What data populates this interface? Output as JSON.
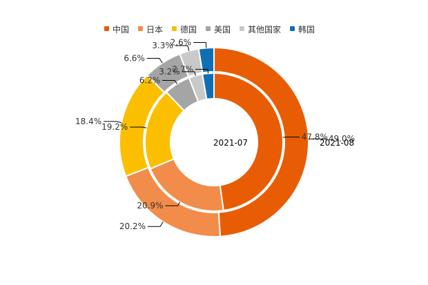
{
  "chart_data": {
    "type": "pie",
    "variant": "nested-donut",
    "categories": [
      "中国",
      "日本",
      "德国",
      "美国",
      "其他国家",
      "韩国"
    ],
    "colors": [
      "#e85d04",
      "#f28c4a",
      "#fcbf00",
      "#a5a5a5",
      "#c9c9c9",
      "#0f6fb6"
    ],
    "legend_placement": "top-center",
    "series": [
      {
        "name": "2021-07",
        "ring": "inner",
        "values": [
          47.8,
          20.9,
          19.2,
          6.2,
          3.2,
          2.7
        ],
        "labels": [
          "47.8%",
          "20.9%",
          "19.2%",
          "6.2%",
          "3.2%",
          "2.7%"
        ]
      },
      {
        "name": "2021-08",
        "ring": "outer",
        "values": [
          49.0,
          20.2,
          18.4,
          6.6,
          3.3,
          2.6
        ],
        "labels": [
          "49.0%",
          "20.2%",
          "18.4%",
          "6.6%",
          "3.3%",
          "2.6%"
        ]
      }
    ]
  }
}
